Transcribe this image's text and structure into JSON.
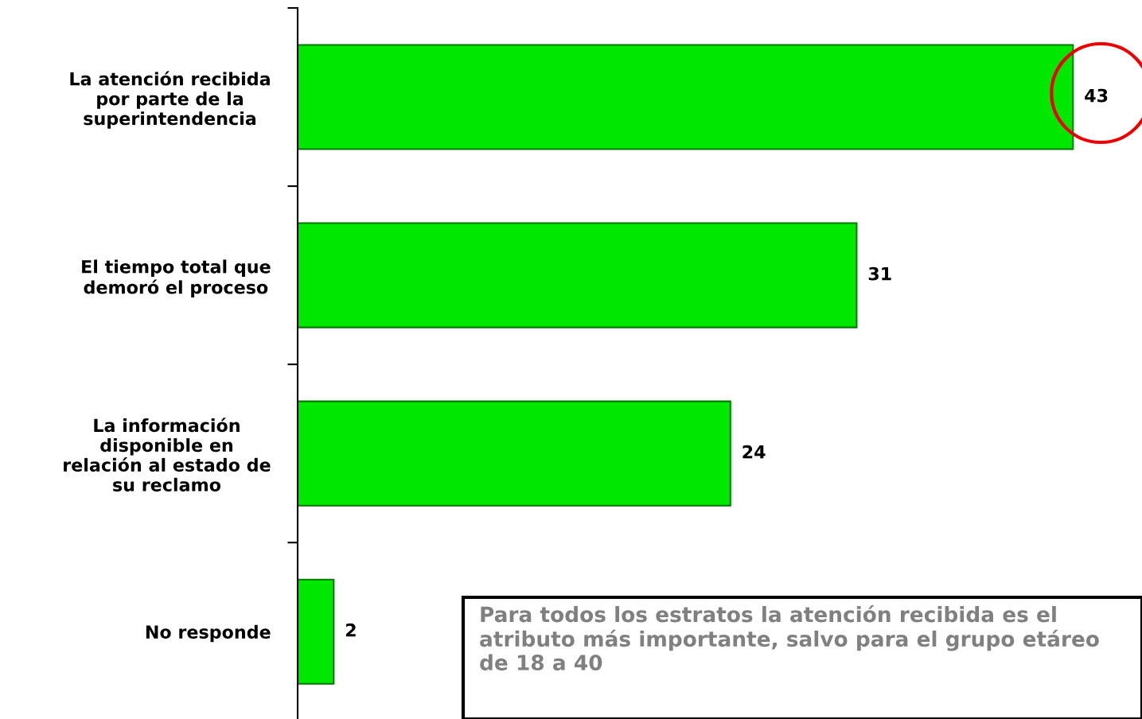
{
  "chart_data": {
    "type": "bar",
    "orientation": "horizontal",
    "categories": [
      "La atención recibida\npor parte de la\nsuperintendencia",
      "El tiempo total que\ndemoró el proceso",
      "La información\ndisponible en\nrelación al estado de\nsu reclamo",
      "No responde"
    ],
    "values": [
      43,
      31,
      24,
      2
    ],
    "color": "#00e800",
    "tick_labels": "y",
    "data_labels": true,
    "grid": false,
    "legend": false,
    "annotations": [
      "Para todos los estratos la atención recibida es el atributo más importante, salvo para el grupo etáreo de 18 a 40"
    ]
  }
}
